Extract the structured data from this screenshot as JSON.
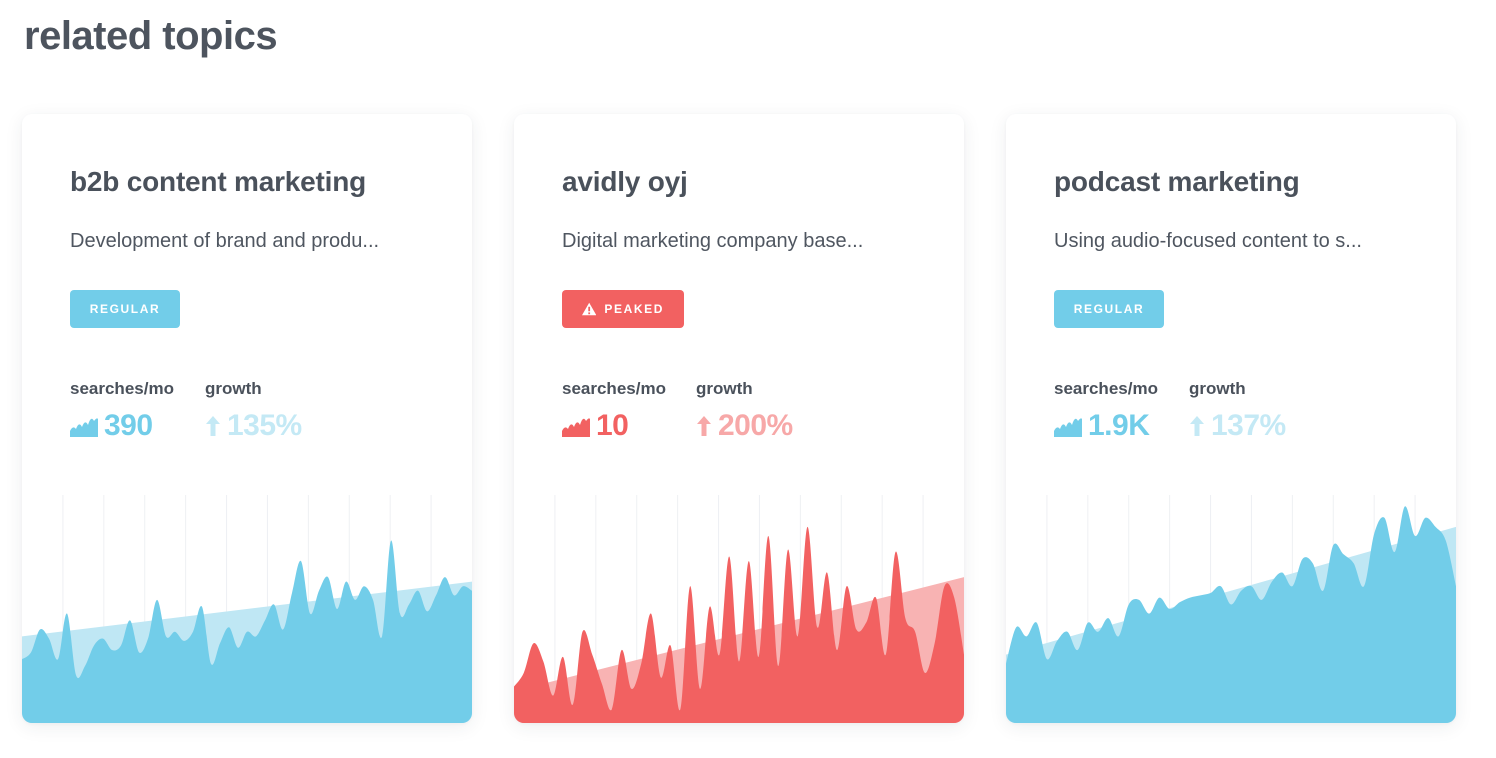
{
  "page": {
    "title": "related topics"
  },
  "cards": [
    {
      "title": "b2b content marketing",
      "description": "Development of brand and produ...",
      "badge": "REGULAR",
      "badge_type": "regular",
      "searches_label": "searches/mo",
      "searches_value": "390",
      "growth_label": "growth",
      "growth_value": "135%",
      "color": "#72cde9",
      "growth_color": "#c4e9f5",
      "trend_color": "#bfe7f4"
    },
    {
      "title": "avidly oyj",
      "description": "Digital marketing company base...",
      "badge": "PEAKED",
      "badge_type": "peaked",
      "badge_icon": "warning-icon",
      "searches_label": "searches/mo",
      "searches_value": "10",
      "growth_label": "growth",
      "growth_value": "200%",
      "color": "#f26161",
      "growth_color": "#f7a8a8",
      "trend_color": "#f8b3b3"
    },
    {
      "title": "podcast marketing",
      "description": "Using audio-focused content to s...",
      "badge": "REGULAR",
      "badge_type": "regular",
      "searches_label": "searches/mo",
      "searches_value": "1.9K",
      "growth_label": "growth",
      "growth_value": "137%",
      "color": "#72cde9",
      "growth_color": "#c4e9f5",
      "trend_color": "#bfe7f4"
    }
  ],
  "chart_data": [
    {
      "type": "area",
      "series": [
        {
          "values": [
            28,
            31,
            41,
            37,
            28,
            48,
            21,
            25,
            34,
            37,
            32,
            34,
            45,
            31,
            37,
            54,
            38,
            40,
            36,
            40,
            51,
            26,
            35,
            42,
            33,
            40,
            38,
            45,
            52,
            41,
            57,
            71,
            48,
            58,
            64,
            50,
            62,
            54,
            60,
            54,
            38,
            80,
            48,
            52,
            58,
            49,
            56,
            64,
            56,
            60,
            58
          ]
        }
      ],
      "trend": [
        38,
        62
      ],
      "ylim": [
        0,
        100
      ],
      "grid_lines": 10
    },
    {
      "type": "area",
      "series": [
        {
          "values": [
            16,
            22,
            35,
            27,
            12,
            29,
            8,
            40,
            30,
            17,
            6,
            32,
            15,
            26,
            48,
            20,
            34,
            6,
            60,
            15,
            51,
            30,
            73,
            27,
            71,
            29,
            82,
            25,
            76,
            38,
            86,
            42,
            66,
            32,
            60,
            41,
            44,
            55,
            30,
            75,
            46,
            40,
            22,
            35,
            60,
            55,
            30
          ]
        }
      ],
      "trend": [
        14,
        64
      ],
      "ylim": [
        0,
        100
      ],
      "grid_lines": 10
    },
    {
      "type": "area",
      "series": [
        {
          "values": [
            26,
            42,
            38,
            44,
            28,
            36,
            40,
            32,
            44,
            40,
            46,
            38,
            52,
            54,
            48,
            55,
            50,
            53,
            55,
            56,
            57,
            60,
            52,
            58,
            60,
            54,
            62,
            66,
            60,
            72,
            70,
            58,
            78,
            74,
            70,
            60,
            83,
            90,
            75,
            95,
            82,
            90,
            86,
            80,
            60
          ]
        }
      ],
      "trend": [
        30,
        86
      ],
      "ylim": [
        0,
        100
      ],
      "grid_lines": 10
    }
  ]
}
